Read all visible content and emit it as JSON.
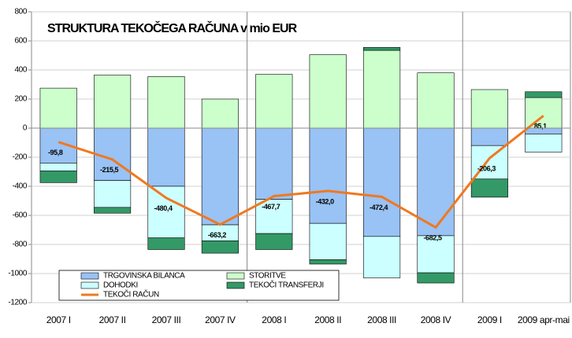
{
  "chart_data": {
    "type": "bar-line",
    "title": "STRUKTURA TEKOČEGA RAČUNA v mio EUR",
    "categories": [
      "2007  I",
      "2007 II",
      "2007 III",
      "2007 IV",
      "2008 I",
      "2008 II",
      "2008 III",
      "2008 IV",
      "2009 I",
      "2009 apr-mai"
    ],
    "series": [
      {
        "name": "TRGOVINSKA BILANCA",
        "color": "#99c2f5",
        "kind": "bar",
        "values": [
          -240,
          -360,
          -400,
          -665,
          -490,
          -655,
          -745,
          -740,
          -120,
          -40
        ]
      },
      {
        "name": "STORITVE",
        "color": "#ccffcc",
        "kind": "bar",
        "values": [
          275,
          365,
          355,
          200,
          370,
          505,
          535,
          380,
          265,
          210
        ]
      },
      {
        "name": "DOHODKI",
        "color": "#ccffff",
        "kind": "bar",
        "values": [
          -55,
          -185,
          -355,
          -110,
          -235,
          -250,
          -285,
          -255,
          -230,
          -125
        ]
      },
      {
        "name": "TEKOČI TRANSFERJI",
        "color": "#339966",
        "kind": "bar",
        "values": [
          -80,
          -40,
          -80,
          -85,
          -110,
          -30,
          20,
          -70,
          -125,
          40
        ]
      },
      {
        "name": "TEKOČI RAČUN",
        "color": "#f07820",
        "kind": "line",
        "values": [
          -95.8,
          -215.5,
          -480.4,
          -663.2,
          -467.7,
          -432.0,
          -472.4,
          -682.5,
          -206.3,
          85.1
        ],
        "value_labels": [
          "-95,8",
          "-215,5",
          "-480,4",
          "-663,2",
          "-467,7",
          "-432,0",
          "-472,4",
          "-682,5",
          "-206,3",
          "85,1"
        ]
      }
    ],
    "ylim": [
      -1200,
      800
    ],
    "yticks": [
      -1200,
      -1000,
      -800,
      -600,
      -400,
      -200,
      0,
      200,
      400,
      600,
      800
    ],
    "grid": true,
    "legend": "lower left"
  }
}
